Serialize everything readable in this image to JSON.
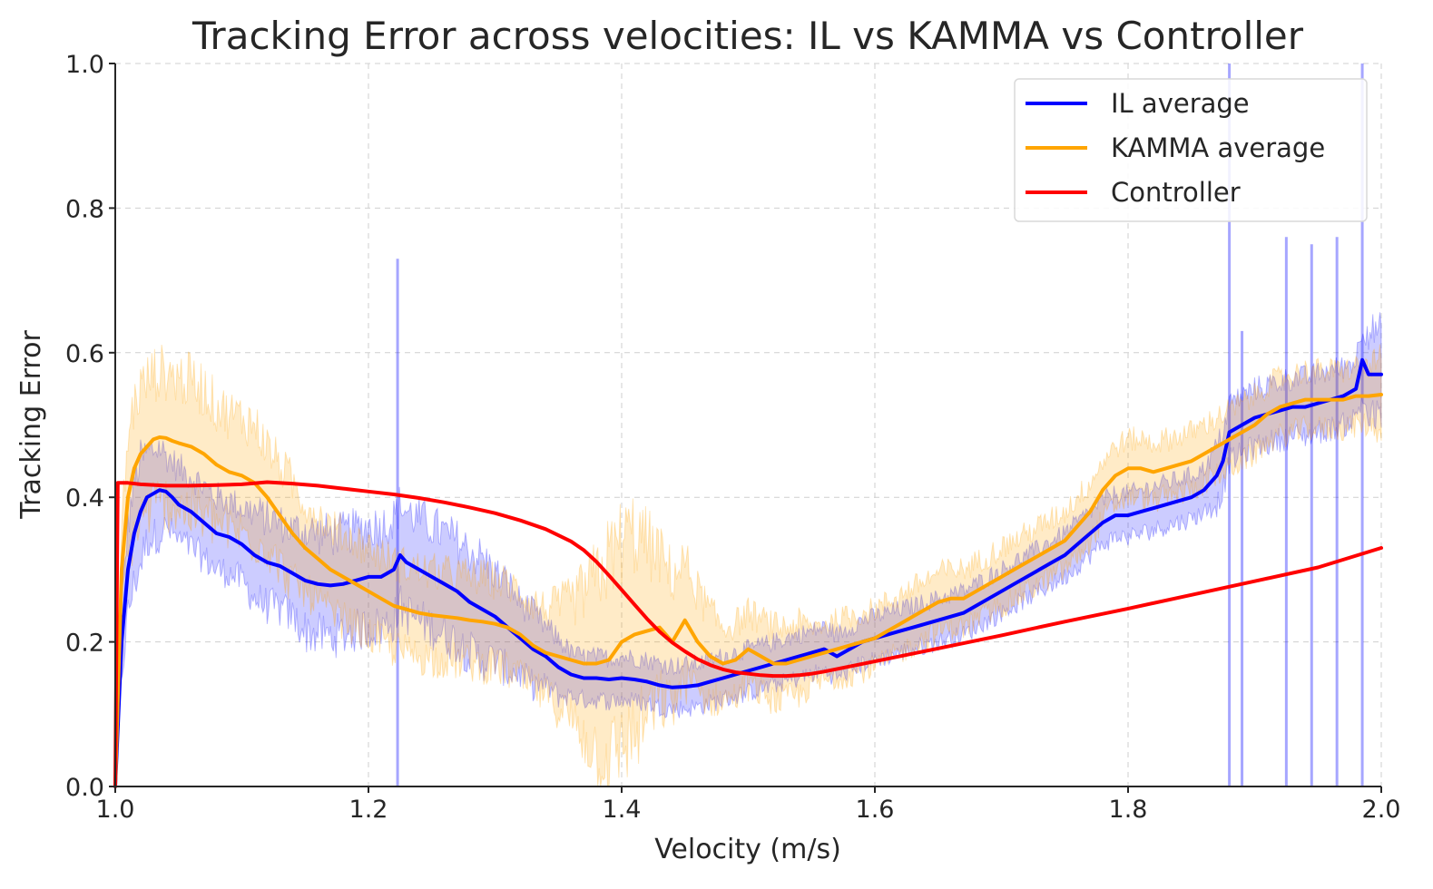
{
  "chart_data": {
    "type": "line",
    "title": "Tracking Error across velocities: IL vs KAMMA vs Controller",
    "xlabel": "Velocity (m/s)",
    "ylabel": "Tracking Error",
    "xlim": [
      1.0,
      2.0
    ],
    "ylim": [
      0.0,
      1.0
    ],
    "xticks": [
      "1.0",
      "1.2",
      "1.4",
      "1.6",
      "1.8",
      "2.0"
    ],
    "yticks": [
      "0.0",
      "0.2",
      "0.4",
      "0.6",
      "0.8",
      "1.0"
    ],
    "grid": true,
    "legend_position": "top-right",
    "series": [
      {
        "name": "IL average",
        "color": "#0000ff",
        "band_color": "#0000ff",
        "band_opacity": 0.2,
        "x": [
          1.0,
          1.005,
          1.01,
          1.015,
          1.02,
          1.025,
          1.03,
          1.035,
          1.04,
          1.045,
          1.05,
          1.06,
          1.07,
          1.08,
          1.09,
          1.1,
          1.11,
          1.12,
          1.13,
          1.14,
          1.15,
          1.16,
          1.17,
          1.18,
          1.19,
          1.2,
          1.21,
          1.22,
          1.225,
          1.23,
          1.24,
          1.25,
          1.26,
          1.27,
          1.28,
          1.29,
          1.3,
          1.31,
          1.32,
          1.33,
          1.34,
          1.35,
          1.36,
          1.37,
          1.38,
          1.39,
          1.4,
          1.41,
          1.42,
          1.43,
          1.44,
          1.45,
          1.46,
          1.47,
          1.48,
          1.49,
          1.5,
          1.51,
          1.52,
          1.53,
          1.54,
          1.55,
          1.56,
          1.57,
          1.58,
          1.59,
          1.6,
          1.61,
          1.62,
          1.63,
          1.64,
          1.65,
          1.66,
          1.67,
          1.68,
          1.69,
          1.7,
          1.71,
          1.72,
          1.73,
          1.74,
          1.75,
          1.76,
          1.77,
          1.78,
          1.79,
          1.8,
          1.81,
          1.82,
          1.83,
          1.84,
          1.85,
          1.86,
          1.87,
          1.875,
          1.88,
          1.89,
          1.9,
          1.91,
          1.92,
          1.93,
          1.94,
          1.95,
          1.96,
          1.97,
          1.98,
          1.985,
          1.99,
          2.0
        ],
        "y": [
          0.0,
          0.2,
          0.3,
          0.35,
          0.38,
          0.4,
          0.405,
          0.41,
          0.408,
          0.4,
          0.39,
          0.38,
          0.365,
          0.35,
          0.345,
          0.335,
          0.32,
          0.31,
          0.305,
          0.295,
          0.285,
          0.28,
          0.278,
          0.28,
          0.285,
          0.29,
          0.29,
          0.3,
          0.32,
          0.31,
          0.3,
          0.29,
          0.28,
          0.27,
          0.255,
          0.245,
          0.235,
          0.22,
          0.205,
          0.19,
          0.18,
          0.165,
          0.155,
          0.15,
          0.15,
          0.148,
          0.15,
          0.148,
          0.145,
          0.14,
          0.137,
          0.138,
          0.14,
          0.145,
          0.15,
          0.155,
          0.16,
          0.165,
          0.17,
          0.175,
          0.18,
          0.185,
          0.19,
          0.18,
          0.19,
          0.2,
          0.205,
          0.21,
          0.215,
          0.22,
          0.225,
          0.23,
          0.235,
          0.24,
          0.25,
          0.26,
          0.27,
          0.28,
          0.29,
          0.3,
          0.31,
          0.32,
          0.335,
          0.35,
          0.365,
          0.375,
          0.375,
          0.38,
          0.385,
          0.39,
          0.395,
          0.4,
          0.41,
          0.43,
          0.45,
          0.49,
          0.5,
          0.51,
          0.515,
          0.52,
          0.525,
          0.525,
          0.53,
          0.535,
          0.54,
          0.55,
          0.59,
          0.57,
          0.57
        ],
        "band_halfwidth": [
          0.0,
          0.05,
          0.06,
          0.07,
          0.07,
          0.06,
          0.06,
          0.06,
          0.05,
          0.05,
          0.05,
          0.05,
          0.05,
          0.05,
          0.05,
          0.05,
          0.06,
          0.06,
          0.06,
          0.06,
          0.07,
          0.07,
          0.07,
          0.07,
          0.07,
          0.07,
          0.07,
          0.07,
          0.07,
          0.07,
          0.07,
          0.07,
          0.07,
          0.07,
          0.07,
          0.07,
          0.06,
          0.06,
          0.05,
          0.05,
          0.04,
          0.04,
          0.03,
          0.03,
          0.03,
          0.03,
          0.03,
          0.03,
          0.03,
          0.03,
          0.03,
          0.03,
          0.03,
          0.03,
          0.03,
          0.03,
          0.03,
          0.03,
          0.03,
          0.03,
          0.03,
          0.03,
          0.03,
          0.03,
          0.03,
          0.03,
          0.03,
          0.03,
          0.03,
          0.03,
          0.03,
          0.03,
          0.03,
          0.03,
          0.03,
          0.03,
          0.03,
          0.03,
          0.03,
          0.03,
          0.03,
          0.03,
          0.03,
          0.03,
          0.03,
          0.03,
          0.03,
          0.03,
          0.03,
          0.03,
          0.03,
          0.03,
          0.03,
          0.04,
          0.04,
          0.04,
          0.04,
          0.04,
          0.04,
          0.04,
          0.04,
          0.04,
          0.04,
          0.04,
          0.04,
          0.04,
          0.05,
          0.06,
          0.06
        ],
        "spikes": [
          [
            1.223,
            0.73
          ],
          [
            1.88,
            1.0
          ],
          [
            1.985,
            1.0
          ],
          [
            1.89,
            0.63
          ],
          [
            1.925,
            0.76
          ],
          [
            1.945,
            0.75
          ],
          [
            1.965,
            0.76
          ]
        ]
      },
      {
        "name": "KAMMA average",
        "color": "#ffa500",
        "band_color": "#ffa500",
        "band_opacity": 0.22,
        "x": [
          1.0,
          1.005,
          1.01,
          1.015,
          1.02,
          1.025,
          1.03,
          1.035,
          1.04,
          1.045,
          1.05,
          1.06,
          1.07,
          1.08,
          1.09,
          1.1,
          1.11,
          1.12,
          1.13,
          1.14,
          1.15,
          1.16,
          1.17,
          1.18,
          1.19,
          1.2,
          1.21,
          1.22,
          1.23,
          1.24,
          1.25,
          1.26,
          1.27,
          1.28,
          1.29,
          1.3,
          1.31,
          1.32,
          1.33,
          1.34,
          1.35,
          1.36,
          1.37,
          1.38,
          1.39,
          1.4,
          1.41,
          1.42,
          1.43,
          1.44,
          1.45,
          1.46,
          1.47,
          1.48,
          1.49,
          1.5,
          1.51,
          1.52,
          1.53,
          1.54,
          1.55,
          1.56,
          1.57,
          1.58,
          1.59,
          1.6,
          1.61,
          1.62,
          1.63,
          1.64,
          1.65,
          1.66,
          1.67,
          1.68,
          1.69,
          1.7,
          1.71,
          1.72,
          1.73,
          1.74,
          1.75,
          1.76,
          1.77,
          1.78,
          1.79,
          1.8,
          1.81,
          1.82,
          1.83,
          1.84,
          1.85,
          1.86,
          1.87,
          1.88,
          1.89,
          1.9,
          1.91,
          1.92,
          1.93,
          1.94,
          1.95,
          1.96,
          1.97,
          1.98,
          1.99,
          2.0
        ],
        "y": [
          0.0,
          0.3,
          0.4,
          0.44,
          0.46,
          0.47,
          0.48,
          0.483,
          0.482,
          0.478,
          0.475,
          0.47,
          0.46,
          0.445,
          0.435,
          0.43,
          0.42,
          0.4,
          0.375,
          0.35,
          0.33,
          0.315,
          0.3,
          0.29,
          0.28,
          0.27,
          0.26,
          0.25,
          0.245,
          0.24,
          0.237,
          0.235,
          0.233,
          0.23,
          0.228,
          0.225,
          0.22,
          0.21,
          0.195,
          0.185,
          0.18,
          0.175,
          0.17,
          0.17,
          0.175,
          0.2,
          0.21,
          0.215,
          0.22,
          0.2,
          0.23,
          0.2,
          0.18,
          0.17,
          0.175,
          0.19,
          0.18,
          0.17,
          0.17,
          0.175,
          0.18,
          0.185,
          0.19,
          0.195,
          0.2,
          0.205,
          0.215,
          0.225,
          0.235,
          0.245,
          0.255,
          0.26,
          0.26,
          0.27,
          0.28,
          0.29,
          0.3,
          0.31,
          0.32,
          0.33,
          0.34,
          0.36,
          0.38,
          0.41,
          0.43,
          0.44,
          0.44,
          0.435,
          0.44,
          0.445,
          0.45,
          0.46,
          0.47,
          0.48,
          0.49,
          0.5,
          0.515,
          0.525,
          0.53,
          0.535,
          0.535,
          0.535,
          0.535,
          0.54,
          0.54,
          0.542
        ],
        "band_halfwidth": [
          0.0,
          0.06,
          0.08,
          0.09,
          0.09,
          0.09,
          0.09,
          0.09,
          0.09,
          0.09,
          0.09,
          0.09,
          0.09,
          0.08,
          0.08,
          0.08,
          0.08,
          0.07,
          0.07,
          0.07,
          0.06,
          0.06,
          0.06,
          0.06,
          0.06,
          0.06,
          0.06,
          0.06,
          0.06,
          0.06,
          0.06,
          0.06,
          0.06,
          0.06,
          0.06,
          0.06,
          0.06,
          0.06,
          0.06,
          0.06,
          0.07,
          0.08,
          0.1,
          0.12,
          0.14,
          0.14,
          0.14,
          0.12,
          0.1,
          0.09,
          0.08,
          0.07,
          0.06,
          0.05,
          0.05,
          0.05,
          0.05,
          0.05,
          0.05,
          0.05,
          0.04,
          0.04,
          0.04,
          0.04,
          0.04,
          0.04,
          0.04,
          0.04,
          0.04,
          0.04,
          0.04,
          0.04,
          0.04,
          0.04,
          0.04,
          0.04,
          0.04,
          0.04,
          0.04,
          0.04,
          0.04,
          0.04,
          0.04,
          0.04,
          0.04,
          0.04,
          0.04,
          0.04,
          0.04,
          0.04,
          0.04,
          0.04,
          0.04,
          0.04,
          0.04,
          0.04,
          0.04,
          0.04,
          0.04,
          0.04,
          0.04,
          0.04,
          0.04,
          0.04,
          0.04,
          0.05
        ]
      },
      {
        "name": "Controller",
        "color": "#ff0000",
        "x": [
          1.0,
          1.002,
          1.005,
          1.01,
          1.02,
          1.04,
          1.06,
          1.08,
          1.1,
          1.12,
          1.14,
          1.16,
          1.18,
          1.2,
          1.22,
          1.24,
          1.26,
          1.28,
          1.3,
          1.32,
          1.34,
          1.36,
          1.37,
          1.38,
          1.39,
          1.4,
          1.41,
          1.42,
          1.43,
          1.44,
          1.45,
          1.46,
          1.47,
          1.48,
          1.49,
          1.5,
          1.51,
          1.52,
          1.53,
          1.54,
          1.55,
          1.56,
          1.58,
          1.6,
          1.65,
          1.7,
          1.75,
          1.8,
          1.85,
          1.9,
          1.95,
          2.0
        ],
        "y": [
          0.0,
          0.42,
          0.42,
          0.42,
          0.418,
          0.416,
          0.416,
          0.417,
          0.418,
          0.421,
          0.419,
          0.416,
          0.412,
          0.408,
          0.404,
          0.399,
          0.393,
          0.386,
          0.378,
          0.368,
          0.356,
          0.339,
          0.327,
          0.311,
          0.292,
          0.272,
          0.252,
          0.232,
          0.214,
          0.199,
          0.187,
          0.176,
          0.168,
          0.162,
          0.158,
          0.156,
          0.154,
          0.153,
          0.153,
          0.154,
          0.156,
          0.159,
          0.166,
          0.173,
          0.191,
          0.209,
          0.228,
          0.246,
          0.265,
          0.284,
          0.303,
          0.33
        ]
      }
    ]
  }
}
